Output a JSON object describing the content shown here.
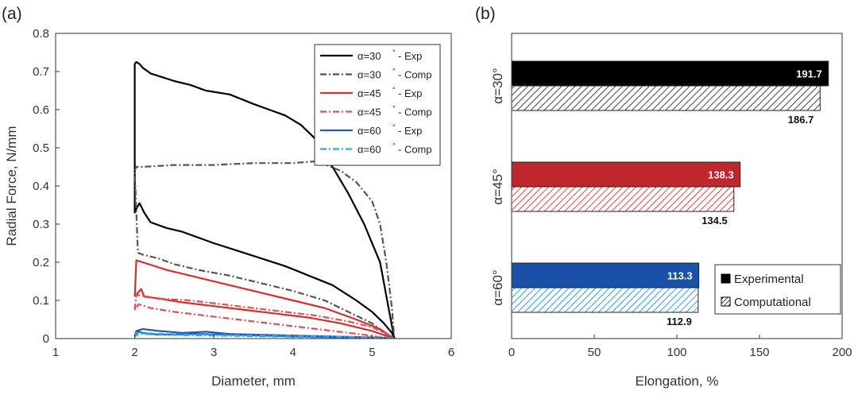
{
  "chart_data": [
    {
      "panel_label": "(a)",
      "type": "line",
      "xlabel": "Diameter, mm",
      "ylabel": "Radial Force, N/mm",
      "xlim": [
        1,
        6
      ],
      "ylim": [
        0,
        0.8
      ],
      "xticks": [
        "1",
        "2",
        "3",
        "4",
        "5",
        "6"
      ],
      "yticks": [
        "0",
        "0.1",
        "0.2",
        "0.3",
        "0.4",
        "0.5",
        "0.6",
        "0.7",
        "0.8"
      ],
      "legend_position": "top-right",
      "series": [
        {
          "name": "α=30° - Exp",
          "legend_text": "- Exp",
          "alpha": "α=30",
          "color": "#000000",
          "dash": "solid",
          "x": [
            5.28,
            5.1,
            4.9,
            4.7,
            4.5,
            4.3,
            4.1,
            3.9,
            3.7,
            3.5,
            3.2,
            2.9,
            2.7,
            2.5,
            2.35,
            2.2,
            2.1,
            2.06,
            2.02,
            2.0,
            2.0,
            2.02,
            2.06,
            2.12,
            2.2,
            2.4,
            2.6,
            2.8,
            3.0,
            3.3,
            3.6,
            3.9,
            4.2,
            4.5,
            4.8,
            5.0,
            5.15,
            5.25,
            5.28
          ],
          "y": [
            0.0,
            0.2,
            0.3,
            0.38,
            0.45,
            0.52,
            0.56,
            0.585,
            0.6,
            0.615,
            0.64,
            0.65,
            0.665,
            0.675,
            0.685,
            0.695,
            0.71,
            0.72,
            0.725,
            0.72,
            0.33,
            0.34,
            0.355,
            0.33,
            0.305,
            0.29,
            0.28,
            0.265,
            0.25,
            0.23,
            0.21,
            0.19,
            0.165,
            0.14,
            0.1,
            0.07,
            0.04,
            0.015,
            0.0
          ]
        },
        {
          "name": "α=30° - Comp",
          "legend_text": "- Comp",
          "alpha": "α=30",
          "color": "#555555",
          "dash": "8,3,2,3",
          "x": [
            2.0,
            2.02,
            2.1,
            2.5,
            3.0,
            3.5,
            4.0,
            4.3,
            4.6,
            4.8,
            5.0,
            5.1,
            5.18,
            5.25,
            5.28,
            5.25,
            5.0,
            4.7,
            4.4,
            4.0,
            3.6,
            3.2,
            2.8,
            2.5,
            2.3,
            2.1,
            2.04,
            2.0
          ],
          "y": [
            0.44,
            0.45,
            0.45,
            0.455,
            0.455,
            0.46,
            0.46,
            0.465,
            0.44,
            0.41,
            0.36,
            0.3,
            0.2,
            0.08,
            0.0,
            0.0,
            0.04,
            0.07,
            0.1,
            0.125,
            0.145,
            0.165,
            0.18,
            0.195,
            0.21,
            0.22,
            0.225,
            0.44
          ]
        },
        {
          "name": "α=45° - Exp",
          "legend_text": "- Exp",
          "alpha": "α=45",
          "color": "#d32f2f",
          "dash": "solid",
          "x": [
            2.0,
            2.02,
            2.1,
            2.4,
            2.8,
            3.2,
            3.6,
            4.0,
            4.4,
            4.8,
            5.1,
            5.28,
            5.28,
            5.0,
            4.6,
            4.2,
            3.8,
            3.4,
            3.0,
            2.6,
            2.3,
            2.12,
            2.08,
            2.04,
            2.0
          ],
          "y": [
            0.11,
            0.205,
            0.2,
            0.18,
            0.16,
            0.14,
            0.12,
            0.1,
            0.08,
            0.05,
            0.025,
            0.0,
            0.0,
            0.02,
            0.04,
            0.055,
            0.065,
            0.075,
            0.085,
            0.095,
            0.105,
            0.11,
            0.13,
            0.12,
            0.11
          ]
        },
        {
          "name": "α=45° - Comp",
          "legend_text": "- Comp",
          "alpha": "α=45",
          "color": "#e05050",
          "dash": "8,3,2,3",
          "x": [
            2.0,
            2.02,
            2.3,
            2.7,
            3.1,
            3.5,
            3.9,
            4.3,
            4.7,
            5.0,
            5.2,
            5.28,
            5.2,
            4.9,
            4.5,
            4.1,
            3.7,
            3.3,
            2.9,
            2.5,
            2.2,
            2.05,
            2.0
          ],
          "y": [
            0.075,
            0.115,
            0.105,
            0.1,
            0.09,
            0.08,
            0.07,
            0.06,
            0.045,
            0.03,
            0.01,
            0.0,
            0.0,
            0.01,
            0.02,
            0.03,
            0.04,
            0.05,
            0.06,
            0.07,
            0.08,
            0.09,
            0.075
          ]
        },
        {
          "name": "α=60° - Exp",
          "legend_text": "- Exp",
          "alpha": "α=60",
          "color": "#1f5fb0",
          "dash": "solid",
          "x": [
            2.0,
            2.02,
            2.1,
            2.3,
            2.6,
            2.9,
            3.2,
            3.6,
            4.0,
            4.4,
            4.8,
            5.2,
            5.3,
            5.2,
            4.6,
            4.0,
            3.4,
            2.8,
            2.3,
            2.1,
            2.02,
            2.0
          ],
          "y": [
            0.008,
            0.02,
            0.025,
            0.02,
            0.015,
            0.018,
            0.012,
            0.01,
            0.008,
            0.006,
            0.004,
            0.002,
            0.0,
            0.0,
            0.003,
            0.006,
            0.009,
            0.012,
            0.01,
            0.015,
            0.02,
            0.008
          ]
        },
        {
          "name": "α=60° - Comp",
          "legend_text": "- Comp",
          "alpha": "α=60",
          "color": "#3aa0e0",
          "dash": "8,3,2,3",
          "x": [
            2.0,
            2.02,
            2.4,
            2.8,
            3.2,
            3.6,
            4.0,
            4.4,
            4.8,
            5.2,
            5.3,
            5.0,
            4.4,
            3.8,
            3.2,
            2.6,
            2.2,
            2.05,
            2.0
          ],
          "y": [
            0.005,
            0.015,
            0.012,
            0.01,
            0.009,
            0.008,
            0.007,
            0.005,
            0.004,
            0.002,
            0.0,
            0.001,
            0.003,
            0.005,
            0.007,
            0.009,
            0.011,
            0.013,
            0.005
          ]
        }
      ]
    },
    {
      "panel_label": "(b)",
      "type": "bar",
      "orientation": "horizontal",
      "xlabel": "Elongation, %",
      "xlim": [
        0,
        200
      ],
      "xticks": [
        "0",
        "50",
        "100",
        "150",
        "200"
      ],
      "legend_position": "bottom-right",
      "groups": [
        {
          "label": "α=30°",
          "experimental": 191.7,
          "computational": 186.7,
          "exp_label": "191.7",
          "comp_label": "186.7",
          "exp_color": "#000000",
          "comp_color": "#444444"
        },
        {
          "label": "α=45°",
          "experimental": 138.3,
          "computational": 134.5,
          "exp_label": "138.3",
          "comp_label": "134.5",
          "exp_color": "#c0272d",
          "comp_color": "#e04444"
        },
        {
          "label": "α=60°",
          "experimental": 113.3,
          "computational": 112.9,
          "exp_label": "113.3",
          "comp_label": "112.9",
          "exp_color": "#1a52a8",
          "comp_color": "#2a9ee0"
        }
      ],
      "legend": [
        {
          "name": "Experimental",
          "style": "solid"
        },
        {
          "name": "Computational",
          "style": "hatched"
        }
      ]
    }
  ]
}
